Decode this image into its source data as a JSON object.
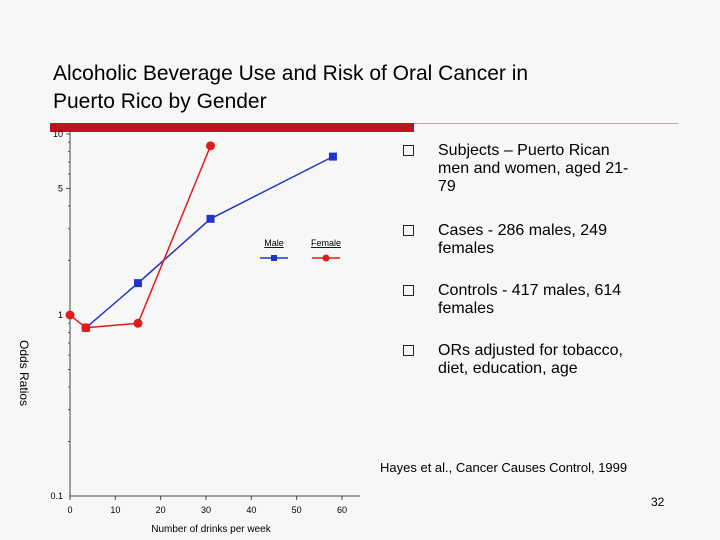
{
  "slide": {
    "title_line1": "Alcoholic Beverage Use and Risk of Oral Cancer in",
    "title_line2": "Puerto Rico by Gender",
    "accent_color": "#c40f1e",
    "bullets": [
      {
        "line1": "Subjects – Puerto Rican",
        "line2": "men and women, aged 21-",
        "line3": "79"
      },
      {
        "line1": "Cases - 286 males, 249",
        "line2": "females"
      },
      {
        "line1": "Controls - 417 males, 614",
        "line2": "females"
      },
      {
        "line1": "ORs adjusted for tobacco,",
        "line2": "diet, education, age"
      }
    ],
    "citation": "Hayes et al., Cancer Causes Control, 1999",
    "slide_number": "32"
  },
  "chart_data": {
    "type": "line",
    "scale": "log",
    "xlabel": "Number of drinks per week",
    "ylabel": "Odds Ratios",
    "xlim": [
      0,
      60
    ],
    "ylim": [
      0.1,
      10
    ],
    "x_ticks": [
      "0",
      "10",
      "20",
      "30",
      "40",
      "50",
      "60"
    ],
    "y_tick_labels": [
      "0.1",
      "1",
      "5",
      "10"
    ],
    "series": [
      {
        "name": "Male",
        "color": "#2233cc",
        "marker": "square",
        "x": [
          3.5,
          15,
          31,
          58
        ],
        "y": [
          0.85,
          1.5,
          3.4,
          7.5
        ]
      },
      {
        "name": "Female",
        "color": "#e01b1b",
        "marker": "circle",
        "x": [
          0,
          3.5,
          15,
          31
        ],
        "y": [
          1.0,
          0.85,
          0.9,
          8.6
        ]
      }
    ]
  }
}
